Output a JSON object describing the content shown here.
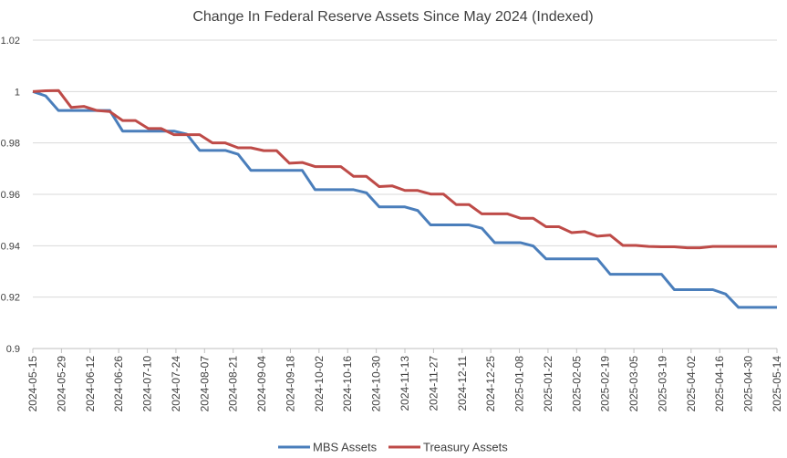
{
  "chart_data": {
    "type": "line",
    "title": "Change In Federal Reserve Assets Since May 2024 (Indexed)",
    "xlabel": "",
    "ylabel": "",
    "ylim": [
      0.9,
      1.02
    ],
    "yticks": [
      0.9,
      0.92,
      0.94,
      0.96,
      0.98,
      1,
      1.02
    ],
    "ytick_labels": [
      "0.9",
      "0.92",
      "0.94",
      "0.96",
      "0.98",
      "1",
      "1.02"
    ],
    "grid": true,
    "legend_position": "bottom",
    "x_tick_labels": [
      "2024-05-15",
      "2024-05-29",
      "2024-06-12",
      "2024-06-26",
      "2024-07-10",
      "2024-07-24",
      "2024-08-07",
      "2024-08-21",
      "2024-09-04",
      "2024-09-18",
      "2024-10-02",
      "2024-10-16",
      "2024-10-30",
      "2024-11-13",
      "2024-11-27",
      "2024-12-11",
      "2024-12-25",
      "2025-01-08",
      "2025-01-22",
      "2025-02-05",
      "2025-02-19",
      "2025-03-05",
      "2025-03-19",
      "2025-04-02",
      "2025-04-16",
      "2025-04-30",
      "2025-05-14"
    ],
    "series": [
      {
        "name": "MBS Assets",
        "color": "#4a7ebb",
        "values": [
          1.0,
          0.9983,
          0.9926,
          0.9926,
          0.9926,
          0.9926,
          0.9926,
          0.9846,
          0.9846,
          0.9846,
          0.9846,
          0.9846,
          0.9834,
          0.9771,
          0.9771,
          0.9771,
          0.9756,
          0.9693,
          0.9693,
          0.9693,
          0.9693,
          0.9693,
          0.9618,
          0.9618,
          0.9618,
          0.9618,
          0.9606,
          0.9551,
          0.9551,
          0.9551,
          0.9537,
          0.9481,
          0.9481,
          0.9481,
          0.9481,
          0.9468,
          0.9412,
          0.9412,
          0.9412,
          0.9399,
          0.9349,
          0.9349,
          0.9349,
          0.9349,
          0.9349,
          0.9289,
          0.9289,
          0.9289,
          0.9289,
          0.9289,
          0.9229,
          0.9229,
          0.9229,
          0.9229,
          0.9212,
          0.916,
          0.916,
          0.916,
          0.916
        ]
      },
      {
        "name": "Treasury Assets",
        "color": "#be4b48",
        "values": [
          1.0,
          1.0003,
          1.0004,
          0.9938,
          0.9942,
          0.9926,
          0.9922,
          0.9887,
          0.9887,
          0.9856,
          0.9856,
          0.9832,
          0.9832,
          0.9832,
          0.98,
          0.98,
          0.9781,
          0.9781,
          0.977,
          0.977,
          0.9721,
          0.9724,
          0.9708,
          0.9708,
          0.9708,
          0.967,
          0.967,
          0.963,
          0.9633,
          0.9615,
          0.9615,
          0.9601,
          0.9601,
          0.956,
          0.956,
          0.9524,
          0.9524,
          0.9524,
          0.9507,
          0.9507,
          0.9474,
          0.9474,
          0.9451,
          0.9455,
          0.9437,
          0.9441,
          0.9401,
          0.9401,
          0.9397,
          0.9396,
          0.9396,
          0.9392,
          0.9392,
          0.9397,
          0.9397,
          0.9397,
          0.9397,
          0.9397,
          0.9397
        ]
      }
    ]
  }
}
